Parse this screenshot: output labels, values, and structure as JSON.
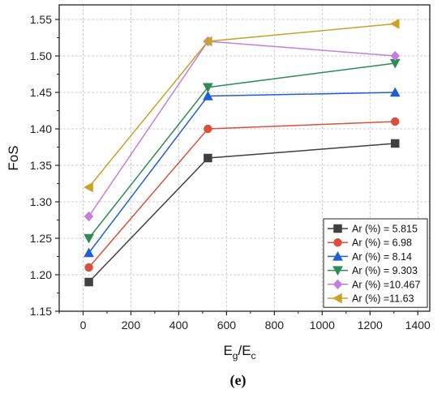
{
  "chart_data": {
    "type": "line",
    "caption": "(e)",
    "xlabel_main": "E",
    "xlabel_sub1": "g",
    "xlabel_mid": "/E",
    "xlabel_sub2": "c",
    "ylabel": "FoS",
    "xlim": [
      -100,
      1450
    ],
    "ylim": [
      1.15,
      1.57
    ],
    "x_ticks": [
      0,
      200,
      400,
      600,
      800,
      1000,
      1200,
      1400
    ],
    "y_ticks": [
      1.15,
      1.2,
      1.25,
      1.3,
      1.35,
      1.4,
      1.45,
      1.5,
      1.55
    ],
    "y_tick_labels": [
      "1.15",
      "1.20",
      "1.25",
      "1.30",
      "1.35",
      "1.40",
      "1.45",
      "1.50",
      "1.55"
    ],
    "grid": true,
    "legend_position": "bottom-right",
    "x": [
      24,
      522,
      1305
    ],
    "series": [
      {
        "name": "Ar (%) = 5.815",
        "color": "#404040",
        "marker": "square",
        "values": [
          1.19,
          1.36,
          1.38
        ]
      },
      {
        "name": "Ar (%) = 6.98",
        "color": "#d9503f",
        "marker": "circle",
        "values": [
          1.21,
          1.4,
          1.41
        ]
      },
      {
        "name": "Ar (%) = 8.14",
        "color": "#1f5fd6",
        "marker": "triangle-up",
        "values": [
          1.23,
          1.445,
          1.45
        ]
      },
      {
        "name": "Ar (%) = 9.303",
        "color": "#2e8b57",
        "marker": "triangle-down",
        "values": [
          1.25,
          1.457,
          1.49
        ]
      },
      {
        "name": "Ar (%) =10.467",
        "color": "#c77de0",
        "marker": "diamond",
        "values": [
          1.28,
          1.52,
          1.5
        ]
      },
      {
        "name": "Ar (%) =11.63",
        "color": "#c9a227",
        "marker": "triangle-left",
        "values": [
          1.32,
          1.52,
          1.544
        ]
      }
    ]
  }
}
